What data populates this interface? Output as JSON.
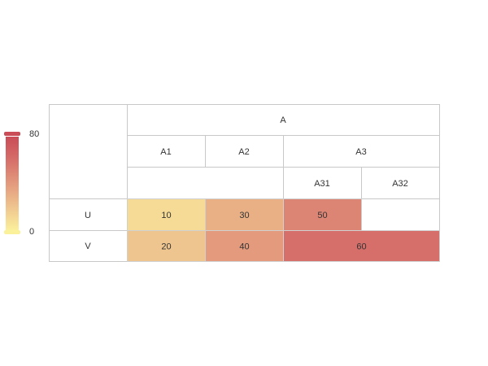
{
  "chart_data": {
    "type": "heatmap",
    "column_header": {
      "label": "A",
      "groups": [
        {
          "label": "A1",
          "children": []
        },
        {
          "label": "A2",
          "children": []
        },
        {
          "label": "A3",
          "children": [
            "A31",
            "A32"
          ]
        }
      ]
    },
    "rows": [
      "U",
      "V"
    ],
    "cells": [
      {
        "row": "U",
        "column": "A1",
        "value": 10
      },
      {
        "row": "U",
        "column": "A2",
        "value": 30
      },
      {
        "row": "U",
        "column": "A31",
        "value": 50
      },
      {
        "row": "V",
        "column": "A1",
        "value": 20
      },
      {
        "row": "V",
        "column": "A2",
        "value": 40
      },
      {
        "row": "V",
        "column": "A3",
        "value": 60
      }
    ],
    "color_scale": {
      "min": 0,
      "max": 80,
      "min_label": "0",
      "max_label": "80",
      "colors": [
        "#fbf19b",
        "#efc58f",
        "#e39a7d",
        "#d66f6a",
        "#c94c57"
      ]
    }
  }
}
